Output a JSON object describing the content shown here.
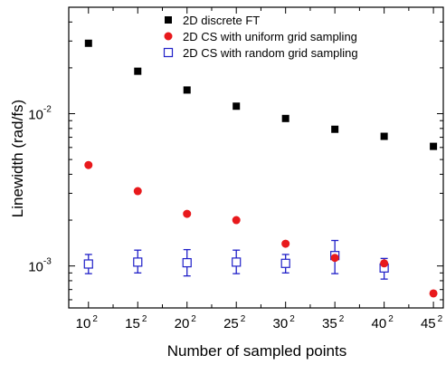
{
  "chart_data": {
    "type": "scatter",
    "xlabel": "Number of sampled points",
    "ylabel": "Linewidth (rad/fs)",
    "x_scale": "linear",
    "y_scale": "log",
    "xlim": [
      8,
      46
    ],
    "ylim": [
      0.00053,
      0.05
    ],
    "x_ticks": [
      {
        "value": 10,
        "base": "10",
        "exp": "2"
      },
      {
        "value": 15,
        "base": "15",
        "exp": "2"
      },
      {
        "value": 20,
        "base": "20",
        "exp": "2"
      },
      {
        "value": 25,
        "base": "25",
        "exp": "2"
      },
      {
        "value": 30,
        "base": "30",
        "exp": "2"
      },
      {
        "value": 35,
        "base": "35",
        "exp": "2"
      },
      {
        "value": 40,
        "base": "40",
        "exp": "2"
      },
      {
        "value": 45,
        "base": "45",
        "exp": "2"
      }
    ],
    "y_ticks": [
      {
        "value": 0.001,
        "base": "10",
        "exp": "-3"
      },
      {
        "value": 0.01,
        "base": "10",
        "exp": "-2"
      }
    ],
    "legend_position": "top-right",
    "series": [
      {
        "name": "2D discrete FT",
        "marker": "filled-square",
        "color": "#000000",
        "x": [
          10,
          15,
          20,
          25,
          30,
          35,
          40,
          45
        ],
        "y": [
          0.029,
          0.019,
          0.0143,
          0.0112,
          0.0093,
          0.0079,
          0.0071,
          0.0061
        ]
      },
      {
        "name": "2D CS with uniform grid sampling",
        "marker": "filled-circle",
        "color": "#e8191c",
        "x": [
          10,
          15,
          20,
          25,
          30,
          35,
          40,
          45
        ],
        "y": [
          0.0046,
          0.0031,
          0.0022,
          0.002,
          0.0014,
          0.00113,
          0.00104,
          0.00066
        ]
      },
      {
        "name": "2D CS with random grid sampling",
        "marker": "open-square",
        "color": "#2020c8",
        "x": [
          10,
          15,
          20,
          25,
          30,
          35,
          40
        ],
        "y": [
          0.00103,
          0.00106,
          0.00105,
          0.00106,
          0.00104,
          0.00117,
          0.00097
        ],
        "y_err_low": [
          0.00089,
          0.0009,
          0.00086,
          0.00089,
          0.0009,
          0.00089,
          0.00082
        ],
        "y_err_high": [
          0.00119,
          0.00127,
          0.00128,
          0.00127,
          0.00119,
          0.00147,
          0.00112
        ]
      }
    ]
  }
}
